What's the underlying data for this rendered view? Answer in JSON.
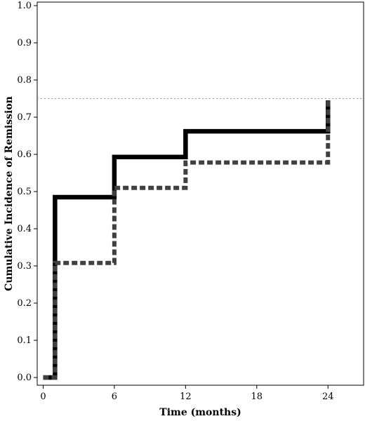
{
  "chart_data": {
    "type": "line",
    "title": "",
    "xlabel": "Time (months)",
    "ylabel": "Cumulative Incidence of Remission",
    "xlim": [
      -0.5,
      27
    ],
    "ylim": [
      0,
      1.0
    ],
    "x_ticks": [
      "0",
      "6",
      "12",
      "18",
      "24"
    ],
    "y_ticks": [
      "0.0",
      "0.1",
      "0.2",
      "0.3",
      "0.4",
      "0.5",
      "0.6",
      "0.7",
      "0.8",
      "0.9",
      "1.0"
    ],
    "reference_line": {
      "y": 0.75,
      "style": "dotted",
      "color": "#999999"
    },
    "grid": false,
    "legend": "none",
    "step": true,
    "series": [
      {
        "style": "solid",
        "color": "#000000",
        "x": [
          0,
          1,
          6,
          12,
          24
        ],
        "y": [
          0.0,
          0.485,
          0.593,
          0.662,
          0.745
        ]
      },
      {
        "style": "dashed",
        "color": "#404040",
        "x": [
          0,
          1,
          6,
          12,
          24
        ],
        "y": [
          0.0,
          0.308,
          0.51,
          0.578,
          0.745
        ]
      }
    ]
  }
}
